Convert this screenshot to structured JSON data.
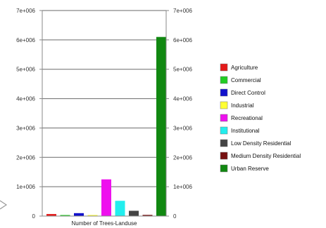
{
  "chart_data": {
    "type": "bar",
    "xlabel": "Number of Trees-Landuse",
    "ylim": [
      0,
      7000000
    ],
    "y_ticks": [
      "0",
      "1e+006",
      "2e+006",
      "3e+006",
      "4e+006",
      "5e+006",
      "6e+006",
      "7e+006"
    ],
    "grid": true,
    "legend_position": "right",
    "series": [
      {
        "name": "Agriculture",
        "value": 70000,
        "color": "#e41a1a"
      },
      {
        "name": "Commercial",
        "value": 30000,
        "color": "#22cc22"
      },
      {
        "name": "Direct Control",
        "value": 100000,
        "color": "#1111cc"
      },
      {
        "name": "Industrial",
        "value": 20000,
        "color": "#ffff33"
      },
      {
        "name": "Recreational",
        "value": 1250000,
        "color": "#ee11ee"
      },
      {
        "name": "Institutional",
        "value": 520000,
        "color": "#22eeee"
      },
      {
        "name": "Low Density Residential",
        "value": 180000,
        "color": "#444444"
      },
      {
        "name": "Medium Density Residential",
        "value": 40000,
        "color": "#771111"
      },
      {
        "name": "Urban Reserve",
        "value": 6100000,
        "color": "#118811"
      }
    ]
  }
}
